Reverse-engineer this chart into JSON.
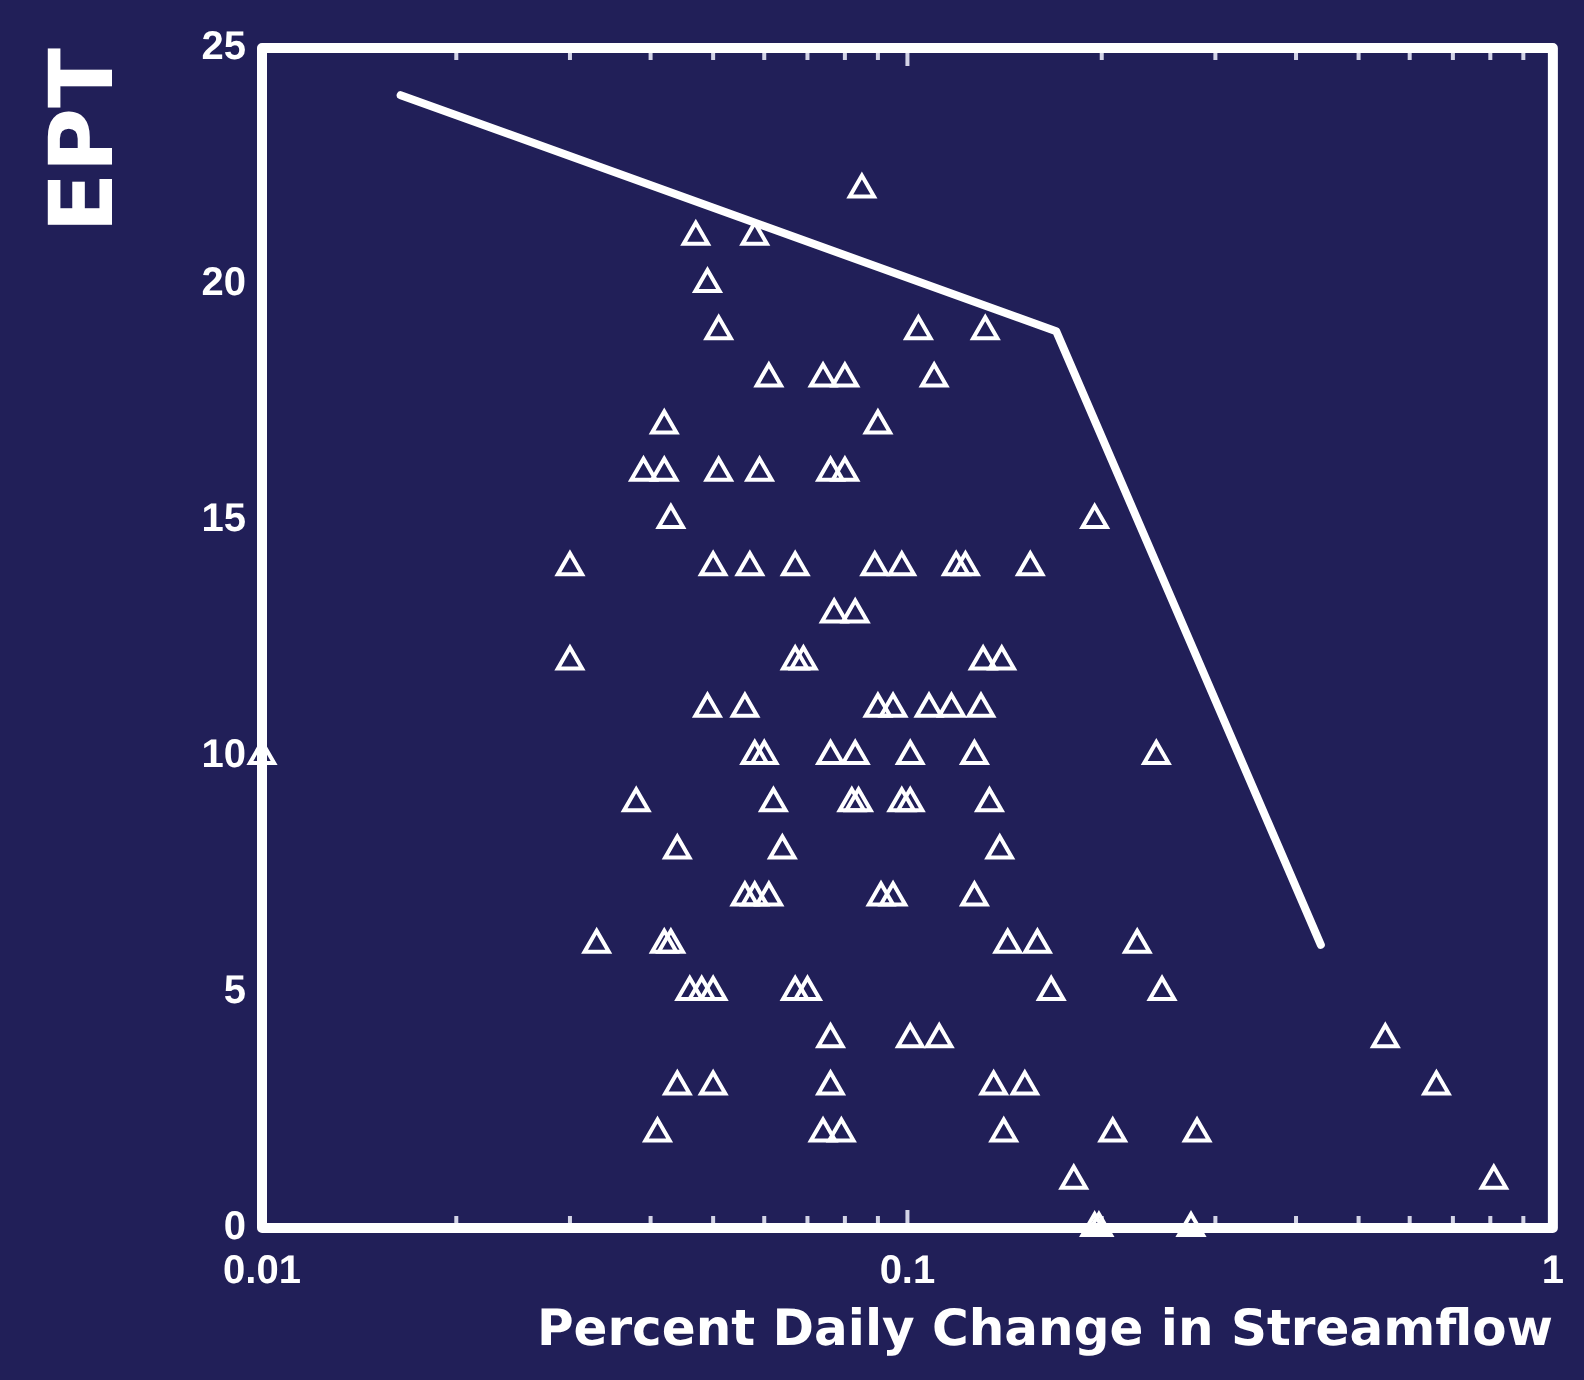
{
  "chart_data": {
    "type": "scatter",
    "xlabel": "Percent Daily Change in Streamflow",
    "ylabel": "EPT",
    "log": "x",
    "grid": false,
    "marker": "triangle",
    "xlim": [
      0.01,
      1
    ],
    "ylim": [
      0,
      25
    ],
    "xticks": [
      0.01,
      {
        "value": 0.02,
        "label": null
      },
      {
        "value": 0.03,
        "label": null
      },
      {
        "value": 0.04,
        "label": null
      },
      {
        "value": 0.05,
        "label": null
      },
      {
        "value": 0.06,
        "label": null
      },
      {
        "value": 0.07,
        "label": null
      },
      {
        "value": 0.08,
        "label": null
      },
      {
        "value": 0.09,
        "label": null
      },
      0.1,
      {
        "value": 0.2,
        "label": null
      },
      {
        "value": 0.3,
        "label": null
      },
      {
        "value": 0.4,
        "label": null
      },
      {
        "value": 0.5,
        "label": null
      },
      {
        "value": 0.6,
        "label": null
      },
      {
        "value": 0.7,
        "label": null
      },
      {
        "value": 0.8,
        "label": null
      },
      {
        "value": 0.9,
        "label": null
      },
      1
    ],
    "yticks": [
      0,
      5,
      10,
      15,
      20,
      25
    ],
    "series": [
      {
        "color": "#ffffff",
        "x": [
          0.085,
          0.047,
          0.058,
          0.049,
          0.051,
          0.104,
          0.132,
          0.061,
          0.074,
          0.08,
          0.11,
          0.042,
          0.09,
          0.039,
          0.042,
          0.051,
          0.059,
          0.076,
          0.08,
          0.043,
          0.195,
          0.03,
          0.05,
          0.057,
          0.067,
          0.089,
          0.098,
          0.119,
          0.123,
          0.155,
          0.077,
          0.083,
          0.03,
          0.067,
          0.069,
          0.131,
          0.14,
          0.049,
          0.056,
          0.09,
          0.095,
          0.108,
          0.117,
          0.13,
          0.01,
          0.058,
          0.06,
          0.076,
          0.083,
          0.101,
          0.127,
          0.243,
          0.038,
          0.062,
          0.082,
          0.084,
          0.098,
          0.101,
          0.134,
          0.044,
          0.064,
          0.139,
          0.056,
          0.058,
          0.061,
          0.091,
          0.095,
          0.127,
          0.033,
          0.042,
          0.043,
          0.143,
          0.159,
          0.227,
          0.046,
          0.048,
          0.05,
          0.067,
          0.07,
          0.167,
          0.248,
          0.076,
          0.101,
          0.112,
          0.55,
          0.044,
          0.05,
          0.076,
          0.136,
          0.152,
          0.66,
          0.041,
          0.074,
          0.079,
          0.141,
          0.208,
          0.281,
          0.181,
          0.81,
          0.195,
          0.198,
          0.275
        ],
        "values": [
          22,
          21,
          21,
          20,
          19,
          19,
          19,
          18,
          18,
          18,
          18,
          17,
          17,
          16,
          16,
          16,
          16,
          16,
          16,
          15,
          15,
          14,
          14,
          14,
          14,
          14,
          14,
          14,
          14,
          14,
          13,
          13,
          12,
          12,
          12,
          12,
          12,
          11,
          11,
          11,
          11,
          11,
          11,
          11,
          10,
          10,
          10,
          10,
          10,
          10,
          10,
          10,
          9,
          9,
          9,
          9,
          9,
          9,
          9,
          8,
          8,
          8,
          7,
          7,
          7,
          7,
          7,
          7,
          6,
          6,
          6,
          6,
          6,
          6,
          5,
          5,
          5,
          5,
          5,
          5,
          5,
          4,
          4,
          4,
          4,
          3,
          3,
          3,
          3,
          3,
          3,
          2,
          2,
          2,
          2,
          2,
          2,
          1,
          1,
          0,
          0,
          0
        ]
      },
      {
        "type": "line",
        "color": "#ffffff",
        "marker": "none",
        "x": [
          0.0164,
          0.17,
          0.437
        ],
        "values": [
          24,
          19,
          6
        ]
      }
    ]
  }
}
